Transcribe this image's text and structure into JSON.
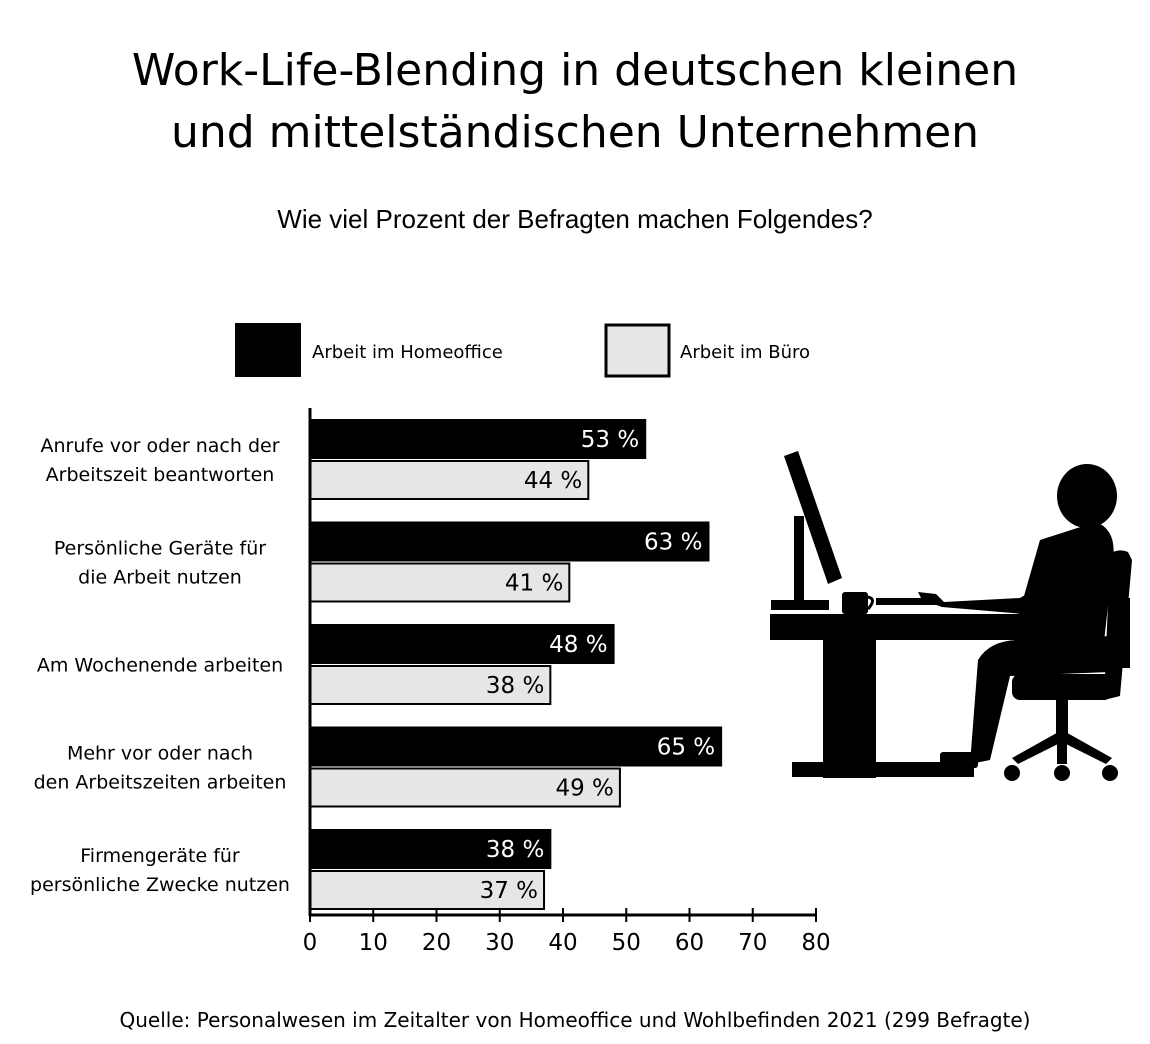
{
  "title_line1": "Work-Life-Blending in deutschen kleinen",
  "title_line2": "und mittelständischen Unternehmen",
  "subtitle": "Wie viel Prozent der Befragten machen Folgendes?",
  "source": "Quelle:  Personalwesen im Zeitalter von Homeoffice und Wohlbefinden 2021 (299 Befragte)",
  "colors": {
    "homeoffice": "#000000",
    "buero": "#e6e6e6",
    "stroke": "#000000"
  },
  "illustration_icon": "person-at-desk-icon",
  "chart_data": {
    "type": "bar",
    "orientation": "horizontal",
    "title": "Work-Life-Blending in deutschen kleinen und mittelständischen Unternehmen",
    "subtitle": "Wie viel Prozent der Befragten machen Folgendes?",
    "categories": [
      [
        "Anrufe vor oder nach der",
        "Arbeitszeit beantworten"
      ],
      [
        "Persönliche Geräte für",
        "die Arbeit nutzen"
      ],
      [
        "Am Wochenende arbeiten"
      ],
      [
        "Mehr vor oder nach",
        "den Arbeitszeiten arbeiten"
      ],
      [
        "Firmengeräte für",
        "persönliche Zwecke nutzen"
      ]
    ],
    "series": [
      {
        "name": "Arbeit im Homeoffice",
        "values": [
          53,
          63,
          48,
          65,
          38
        ],
        "color": "#000000"
      },
      {
        "name": "Arbeit im Büro",
        "values": [
          44,
          41,
          38,
          49,
          37
        ],
        "color": "#e6e6e6"
      }
    ],
    "value_suffix": " %",
    "xlim": [
      0,
      80
    ],
    "xticks": [
      0,
      10,
      20,
      30,
      40,
      50,
      60,
      70,
      80
    ],
    "grid": false,
    "legend": "top"
  }
}
